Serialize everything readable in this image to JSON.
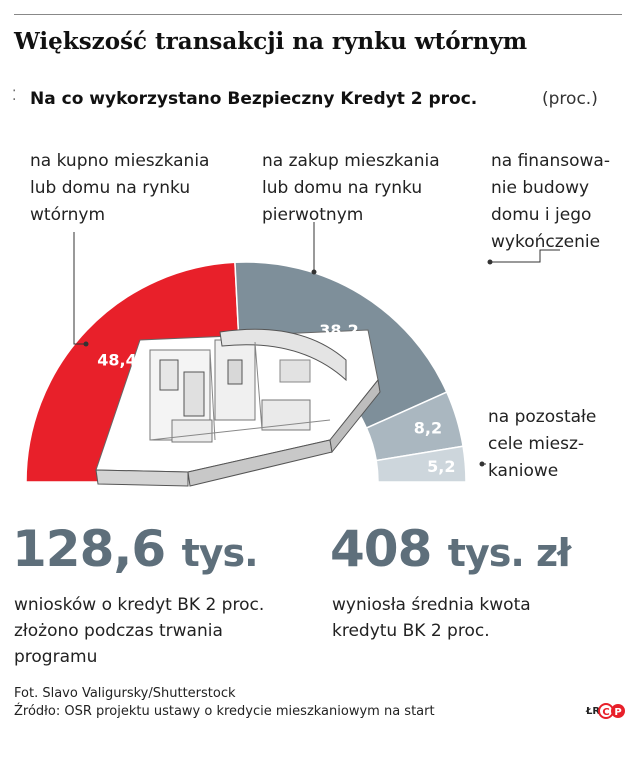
{
  "title": "Większość transakcji na rynku wtórnym",
  "subtitle": "Na co wykorzystano Bezpieczny Kredyt 2 proc.",
  "unit": "(proc.)",
  "chart_data": {
    "type": "pie",
    "shape": "semicircle",
    "categories": [
      "na kupno mieszkania\nlub domu na rynku\nwtórnym",
      "na zakup mieszkania\nlub domu na rynku\npierwotnym",
      "na finansowa-\nnie budowy\ndomu i jego\nwykończenie",
      "na pozostałe\ncele miesz-\nkaniowe"
    ],
    "values": [
      48.4,
      38.2,
      8.2,
      5.2
    ],
    "value_labels": [
      "48,4",
      "38,2",
      "8,2",
      "5,2"
    ],
    "colors": [
      "#e8202a",
      "#7e8f9a",
      "#aab7c0",
      "#cdd6dc"
    ]
  },
  "stats": [
    {
      "number": "128,6",
      "unit": "tys.",
      "description": "wniosków o kredyt BK 2 proc.\nzłożono podczas trwania\nprogramu"
    },
    {
      "number": "408",
      "unit": "tys. zł",
      "description": "wyniosła średnia kwota\nkredytu BK 2 proc."
    }
  ],
  "photo_credit": "Fot. Slavo Valigursky/Shutterstock",
  "source": "Źródło: OSR projektu ustawy o kredycie mieszkaniowym na start",
  "author_initials": "ŁR",
  "logo_text": "CP",
  "icons": {
    "subtitle_marker": "dotted-marker-icon",
    "logo": "cp-logo-icon",
    "illustration": "apartment-illustration"
  }
}
